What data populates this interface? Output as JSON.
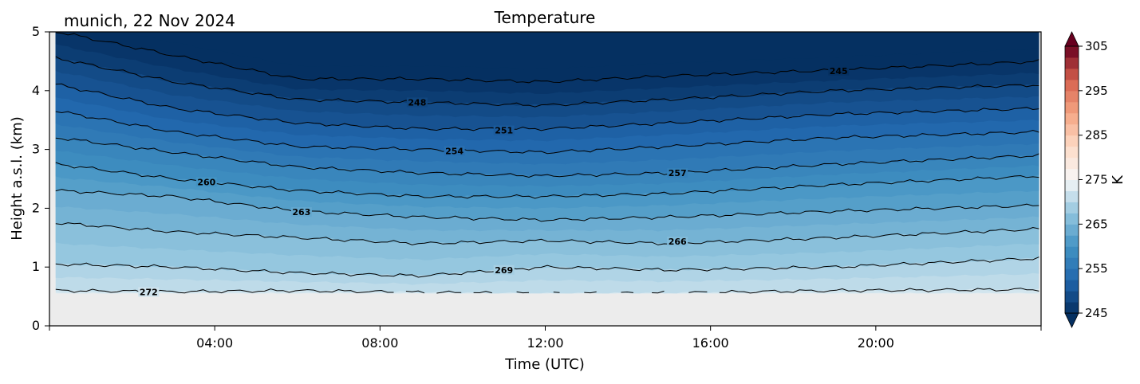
{
  "chart_data": {
    "type": "heatmap",
    "title": "Temperature",
    "subtitle": "munich, 22 Nov 2024",
    "xlabel": "Time (UTC)",
    "ylabel": "Height a.s.l. (km)",
    "x_ticks": [
      "04:00",
      "08:00",
      "12:00",
      "16:00",
      "20:00"
    ],
    "x_tick_hours": [
      4,
      8,
      12,
      16,
      20
    ],
    "xlim_hours": [
      0,
      24
    ],
    "y_ticks": [
      "0",
      "1",
      "2",
      "3",
      "4",
      "5"
    ],
    "ylim": [
      0,
      5
    ],
    "colorbar": {
      "label": "K",
      "range": [
        245,
        305
      ],
      "ticks": [
        "245",
        "255",
        "265",
        "275",
        "285",
        "295",
        "305"
      ],
      "cmap": "RdBu_r",
      "step": 2.5
    },
    "data_bottom_km": 0.55,
    "contours": [
      {
        "label": "272",
        "level": 272,
        "heights_km": [
          0.6,
          0.58,
          0.6,
          0.57,
          0.55,
          0.56,
          0.6,
          0.62
        ]
      },
      {
        "label": "269",
        "level": 269,
        "heights_km": [
          1.05,
          1.0,
          0.9,
          0.85,
          1.0,
          0.95,
          1.0,
          1.15
        ]
      },
      {
        "label": "266",
        "level": 266,
        "heights_km": [
          1.75,
          1.6,
          1.5,
          1.4,
          1.45,
          1.4,
          1.5,
          1.65
        ]
      },
      {
        "label": "263",
        "level": 263,
        "heights_km": [
          2.3,
          2.2,
          1.95,
          1.85,
          1.8,
          1.85,
          1.95,
          2.05
        ]
      },
      {
        "label": "260",
        "level": 260,
        "heights_km": [
          2.75,
          2.5,
          2.3,
          2.2,
          2.2,
          2.25,
          2.4,
          2.55
        ]
      },
      {
        "label": "257",
        "level": 257,
        "heights_km": [
          3.2,
          2.95,
          2.7,
          2.6,
          2.55,
          2.6,
          2.75,
          2.9
        ]
      },
      {
        "label": "254",
        "level": 254,
        "heights_km": [
          3.65,
          3.3,
          3.05,
          3.0,
          2.95,
          3.05,
          3.2,
          3.3
        ]
      },
      {
        "label": "251",
        "level": 251,
        "heights_km": [
          4.1,
          3.7,
          3.45,
          3.35,
          3.35,
          3.45,
          3.6,
          3.7
        ]
      },
      {
        "label": "248",
        "level": 248,
        "heights_km": [
          4.55,
          4.15,
          3.85,
          3.8,
          3.75,
          3.85,
          4.0,
          4.1
        ]
      },
      {
        "label": "245",
        "level": 245,
        "heights_km": [
          5.0,
          4.6,
          4.2,
          4.2,
          4.15,
          4.25,
          4.35,
          4.5
        ]
      }
    ],
    "contour_times_hours": [
      0.2,
      3,
      6,
      9,
      12,
      15,
      19,
      24
    ],
    "contour_labels_at_hours": {
      "272": 2.4,
      "269": 11.0,
      "266": 15.2,
      "263": 6.1,
      "260": 3.8,
      "257": 15.2,
      "254": 9.8,
      "251": 11.0,
      "248": 8.9,
      "245": 19.1
    }
  }
}
